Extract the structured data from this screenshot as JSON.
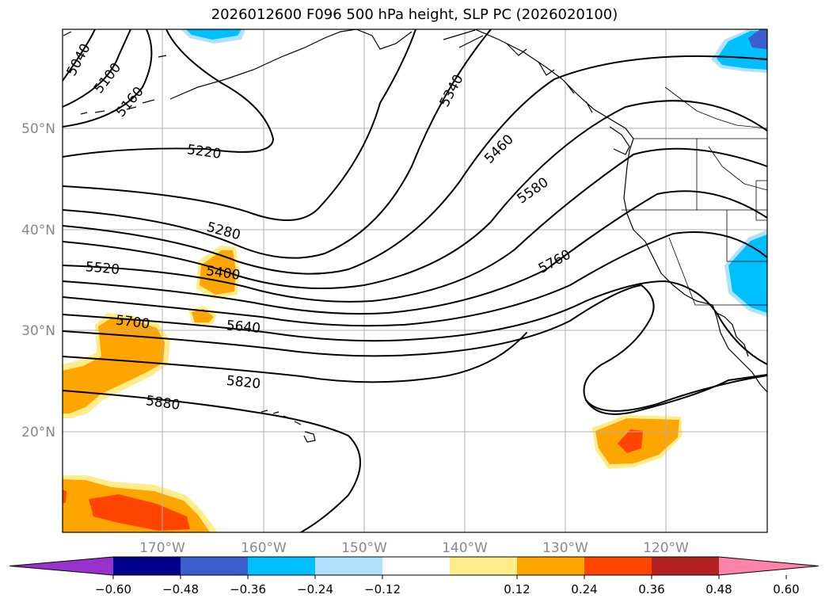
{
  "title": "2026012600 F096 500 hPa height, SLP PC (2026020100)",
  "lat_labels": [
    "50°N",
    "40°N",
    "30°N",
    "20°N"
  ],
  "lon_labels": [
    "170°W",
    "160°W",
    "150°W",
    "140°W",
    "130°W",
    "120°W"
  ],
  "contour_labels": [
    "5040",
    "5100",
    "5160",
    "5220",
    "5280",
    "5340",
    "5400",
    "5460",
    "5520",
    "5580",
    "5640",
    "5700",
    "5760",
    "5820",
    "5880"
  ],
  "colorbar": {
    "ticks": [
      "−0.60",
      "−0.48",
      "−0.36",
      "−0.24",
      "−0.12",
      "0.12",
      "0.24",
      "0.36",
      "0.48",
      "0.60"
    ],
    "colors": [
      "#9932CC",
      "#00008B",
      "#3A5FCD",
      "#00BFFF",
      "#B0E2FF",
      "#FFFFFF",
      "#FFEC8B",
      "#FFA500",
      "#FF4500",
      "#B22222",
      "#FF82AB"
    ]
  },
  "shading_colors": {
    "pale": "#FFEC8B",
    "orange": "#FFA500",
    "red": "#FF4500",
    "sky": "#00BFFF",
    "blue": "#3A5FCD"
  }
}
